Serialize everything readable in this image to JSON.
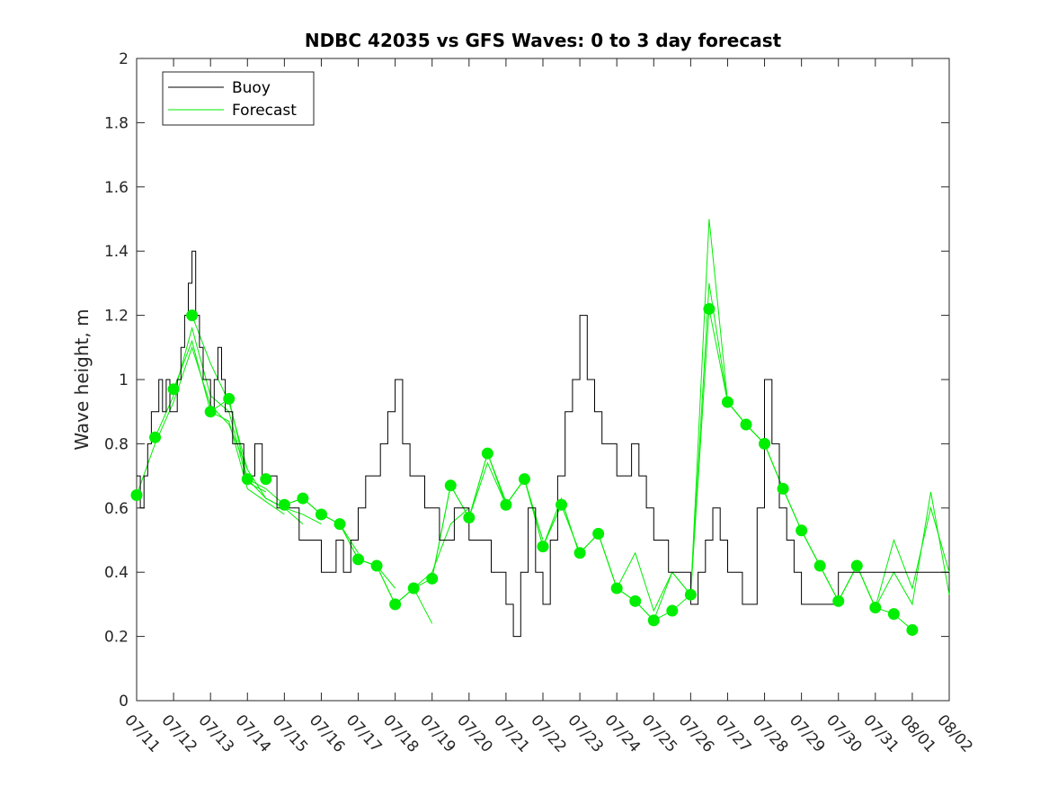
{
  "chart_data": {
    "type": "line",
    "title": "NDBC 42035 vs GFS Waves: 0 to 3 day forecast",
    "xlabel": "",
    "ylabel": "Wave height, m",
    "xlim": [
      "07/11",
      "08/02"
    ],
    "ylim": [
      0,
      2
    ],
    "yticks": [
      0,
      0.2,
      0.4,
      0.6,
      0.8,
      1,
      1.2,
      1.4,
      1.6,
      1.8,
      2
    ],
    "ytick_labels": [
      "0",
      "0.2",
      "0.4",
      "0.6",
      "0.8",
      "1",
      "1.2",
      "1.4",
      "1.6",
      "1.8",
      "2"
    ],
    "xtick_labels": [
      "07/11",
      "07/12",
      "07/13",
      "07/14",
      "07/15",
      "07/16",
      "07/17",
      "07/18",
      "07/19",
      "07/20",
      "07/21",
      "07/22",
      "07/23",
      "07/24",
      "07/25",
      "07/26",
      "07/27",
      "07/28",
      "07/29",
      "07/30",
      "07/31",
      "08/01",
      "08/02"
    ],
    "grid": false,
    "legend": {
      "position": "top-left",
      "entries": [
        "Buoy",
        "Forecast"
      ]
    },
    "colors": {
      "buoy": "#000000",
      "forecast": "#00ee00",
      "dots": "#00ee00"
    },
    "series": [
      {
        "name": "Buoy",
        "x": [
          0,
          0.1,
          0.2,
          0.3,
          0.4,
          0.5,
          0.6,
          0.7,
          0.8,
          0.9,
          1.0,
          1.1,
          1.2,
          1.3,
          1.4,
          1.5,
          1.6,
          1.7,
          1.8,
          1.9,
          2.0,
          2.1,
          2.2,
          2.3,
          2.4,
          2.5,
          2.6,
          2.7,
          2.8,
          2.9,
          3.0,
          3.2,
          3.4,
          3.6,
          3.8,
          4.0,
          4.2,
          4.4,
          4.6,
          4.8,
          5.0,
          5.2,
          5.4,
          5.6,
          5.8,
          6.0,
          6.2,
          6.4,
          6.6,
          6.8,
          7.0,
          7.2,
          7.4,
          7.6,
          7.8,
          8.0,
          8.2,
          8.4,
          8.6,
          8.8,
          9.0,
          9.2,
          9.4,
          9.6,
          9.8,
          10.0,
          10.2,
          10.4,
          10.6,
          10.8,
          11.0,
          11.2,
          11.4,
          11.6,
          11.8,
          12.0,
          12.2,
          12.4,
          12.6,
          12.8,
          13.0,
          13.2,
          13.4,
          13.6,
          13.8,
          14.0,
          14.2,
          14.4,
          14.6,
          14.8,
          15.0,
          15.2,
          15.4,
          15.6,
          15.8,
          16.0,
          16.2,
          16.4,
          16.6,
          16.8,
          17.0,
          17.2,
          17.4,
          17.6,
          17.8,
          18.0,
          18.2,
          18.4,
          18.6,
          18.8,
          19.0,
          19.2,
          19.4,
          19.6,
          19.8,
          20.0,
          20.2,
          20.4,
          20.6,
          20.8,
          21.0,
          21.2,
          21.4,
          21.6,
          21.8,
          22.0
        ],
        "y": [
          0.7,
          0.6,
          0.7,
          0.8,
          0.9,
          0.9,
          1.0,
          0.9,
          1.0,
          0.9,
          0.9,
          1.0,
          1.1,
          1.2,
          1.3,
          1.4,
          1.2,
          1.1,
          1.0,
          1.0,
          0.9,
          1.0,
          1.1,
          1.0,
          0.9,
          0.9,
          0.8,
          0.8,
          0.8,
          0.7,
          0.7,
          0.8,
          0.7,
          0.7,
          0.6,
          0.6,
          0.6,
          0.5,
          0.5,
          0.5,
          0.4,
          0.4,
          0.5,
          0.4,
          0.5,
          0.6,
          0.7,
          0.7,
          0.8,
          0.9,
          1.0,
          0.8,
          0.7,
          0.7,
          0.6,
          0.6,
          0.5,
          0.5,
          0.6,
          0.6,
          0.5,
          0.5,
          0.5,
          0.4,
          0.4,
          0.3,
          0.2,
          0.4,
          0.6,
          0.4,
          0.3,
          0.5,
          0.7,
          0.9,
          1.0,
          1.2,
          1.0,
          0.9,
          0.8,
          0.8,
          0.7,
          0.7,
          0.8,
          0.7,
          0.6,
          0.5,
          0.5,
          0.4,
          0.4,
          0.4,
          0.3,
          0.4,
          0.5,
          0.6,
          0.5,
          0.4,
          0.4,
          0.3,
          0.3,
          0.6,
          1.0,
          0.8,
          0.6,
          0.5,
          0.4,
          0.3,
          0.3,
          0.3,
          0.3,
          0.3,
          0.4,
          0.4,
          0.4,
          0.4,
          0.4,
          0.4,
          0.4,
          0.4,
          0.4,
          0.4,
          0.4,
          0.4,
          0.4,
          0.4,
          0.4,
          0.4
        ]
      }
    ],
    "forecast_runs": [
      {
        "x": [
          0,
          0.5,
          1,
          1.5,
          2,
          2.5,
          3
        ],
        "y": [
          0.64,
          0.8,
          0.93,
          1.1,
          0.92,
          0.86,
          0.72
        ]
      },
      {
        "x": [
          0.5,
          1,
          1.5,
          2,
          2.5,
          3,
          3.5
        ],
        "y": [
          0.82,
          0.95,
          1.16,
          0.95,
          0.9,
          0.68,
          0.65
        ]
      },
      {
        "x": [
          1,
          1.5,
          2,
          2.5,
          3,
          3.5,
          4
        ],
        "y": [
          0.97,
          1.12,
          0.9,
          0.87,
          0.66,
          0.62,
          0.58
        ]
      },
      {
        "x": [
          1.5,
          2,
          2.5,
          3,
          3.5,
          4,
          4.5
        ],
        "y": [
          1.2,
          1.05,
          0.93,
          0.72,
          0.63,
          0.6,
          0.55
        ]
      },
      {
        "x": [
          2,
          2.5,
          3,
          3.5,
          4,
          4.5,
          5
        ],
        "y": [
          0.9,
          0.94,
          0.69,
          0.63,
          0.6,
          0.58,
          0.55
        ]
      },
      {
        "x": [
          3,
          3.5,
          4,
          4.5,
          5,
          5.5,
          6
        ],
        "y": [
          0.69,
          0.66,
          0.61,
          0.63,
          0.58,
          0.55,
          0.46
        ]
      },
      {
        "x": [
          4,
          4.5,
          5,
          5.5,
          6,
          6.5,
          7
        ],
        "y": [
          0.61,
          0.63,
          0.58,
          0.55,
          0.44,
          0.42,
          0.35
        ]
      },
      {
        "x": [
          5,
          5.5,
          6,
          6.5,
          7,
          7.5,
          8
        ],
        "y": [
          0.58,
          0.55,
          0.44,
          0.42,
          0.3,
          0.35,
          0.24
        ]
      },
      {
        "x": [
          6,
          6.5,
          7,
          7.5,
          8,
          8.5,
          9
        ],
        "y": [
          0.44,
          0.42,
          0.3,
          0.35,
          0.4,
          0.55,
          0.6
        ]
      },
      {
        "x": [
          7,
          7.5,
          8,
          8.5,
          9,
          9.5,
          10
        ],
        "y": [
          0.3,
          0.35,
          0.38,
          0.67,
          0.57,
          0.77,
          0.62
        ]
      },
      {
        "x": [
          8,
          8.5,
          9,
          9.5,
          10,
          10.5,
          11
        ],
        "y": [
          0.38,
          0.67,
          0.57,
          0.74,
          0.61,
          0.69,
          0.5
        ]
      },
      {
        "x": [
          9,
          9.5,
          10,
          10.5,
          11,
          11.5,
          12
        ],
        "y": [
          0.57,
          0.77,
          0.61,
          0.69,
          0.48,
          0.63,
          0.45
        ]
      },
      {
        "x": [
          10,
          10.5,
          11,
          11.5,
          12,
          12.5,
          13
        ],
        "y": [
          0.61,
          0.69,
          0.48,
          0.61,
          0.46,
          0.52,
          0.35
        ]
      },
      {
        "x": [
          11,
          11.5,
          12,
          12.5,
          13,
          13.5,
          14
        ],
        "y": [
          0.48,
          0.61,
          0.46,
          0.52,
          0.35,
          0.31,
          0.25
        ]
      },
      {
        "x": [
          12,
          12.5,
          13,
          13.5,
          14,
          14.5,
          15
        ],
        "y": [
          0.46,
          0.52,
          0.35,
          0.46,
          0.28,
          0.4,
          0.33
        ]
      },
      {
        "x": [
          13,
          13.5,
          14,
          14.5,
          15,
          15.5,
          16
        ],
        "y": [
          0.35,
          0.31,
          0.25,
          0.4,
          0.33,
          1.5,
          0.93
        ]
      },
      {
        "x": [
          14,
          14.5,
          15,
          15.5,
          16,
          16.5,
          17
        ],
        "y": [
          0.25,
          0.28,
          0.33,
          1.3,
          0.93,
          0.86,
          0.8
        ]
      },
      {
        "x": [
          15,
          15.5,
          16,
          16.5,
          17,
          17.5,
          18
        ],
        "y": [
          0.33,
          1.22,
          0.93,
          0.86,
          0.8,
          0.66,
          0.53
        ]
      },
      {
        "x": [
          16,
          16.5,
          17,
          17.5,
          18,
          18.5,
          19
        ],
        "y": [
          0.93,
          0.86,
          0.8,
          0.66,
          0.53,
          0.42,
          0.31
        ]
      },
      {
        "x": [
          17,
          17.5,
          18,
          18.5,
          19,
          19.5,
          20
        ],
        "y": [
          0.8,
          0.66,
          0.53,
          0.42,
          0.31,
          0.42,
          0.29
        ]
      },
      {
        "x": [
          18,
          18.5,
          19,
          19.5,
          20,
          20.5,
          21
        ],
        "y": [
          0.53,
          0.42,
          0.31,
          0.42,
          0.29,
          0.27,
          0.22
        ]
      },
      {
        "x": [
          19,
          19.5,
          20,
          20.5,
          21,
          21.5,
          22
        ],
        "y": [
          0.31,
          0.42,
          0.29,
          0.5,
          0.35,
          0.6,
          0.4
        ]
      },
      {
        "x": [
          20,
          20.5,
          21,
          21.5,
          22
        ],
        "y": [
          0.29,
          0.4,
          0.3,
          0.65,
          0.33
        ]
      }
    ],
    "forecast_dots": {
      "x": [
        0,
        0.5,
        1,
        1.5,
        2,
        2.5,
        3,
        3.5,
        4,
        4.5,
        5,
        5.5,
        6,
        6.5,
        7,
        7.5,
        8,
        8.5,
        9,
        9.5,
        10,
        10.5,
        11,
        11.5,
        12,
        12.5,
        13,
        13.5,
        14,
        14.5,
        15,
        15.5,
        16,
        16.5,
        17,
        17.5,
        18,
        18.5,
        19,
        19.5,
        20,
        20.5,
        21
      ],
      "y": [
        0.64,
        0.82,
        0.97,
        1.2,
        0.9,
        0.94,
        0.69,
        0.69,
        0.61,
        0.63,
        0.58,
        0.55,
        0.44,
        0.42,
        0.3,
        0.35,
        0.38,
        0.67,
        0.57,
        0.77,
        0.61,
        0.69,
        0.48,
        0.61,
        0.46,
        0.52,
        0.35,
        0.31,
        0.25,
        0.28,
        0.33,
        1.22,
        0.93,
        0.86,
        0.8,
        0.66,
        0.53,
        0.42,
        0.31,
        0.42,
        0.29,
        0.27,
        0.22
      ]
    }
  }
}
